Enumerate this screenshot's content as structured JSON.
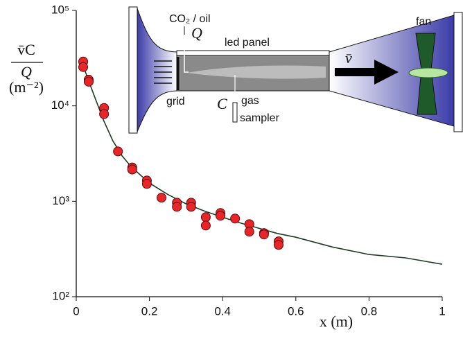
{
  "chart_data": {
    "type": "scatter",
    "ylabel_numerator": "v̄C",
    "ylabel_denominator": "Q",
    "ylabel_units": "(m⁻²)",
    "xlabel": "x (m)",
    "xlim": [
      0,
      1
    ],
    "xticks": [
      0,
      0.2,
      0.4,
      0.6,
      0.8,
      1
    ],
    "ylim": [
      100,
      100000
    ],
    "yticks": [
      {
        "value": 100,
        "label": "10²"
      },
      {
        "value": 1000,
        "label": "10³"
      },
      {
        "value": 10000,
        "label": "10⁴"
      },
      {
        "value": 100000,
        "label": "10⁵"
      }
    ],
    "log_y": true,
    "grid": false,
    "series": [
      {
        "type": "scatter",
        "color": "#e8262a",
        "x": [
          0.019,
          0.019,
          0.034,
          0.034,
          0.076,
          0.076,
          0.114,
          0.153,
          0.153,
          0.193,
          0.193,
          0.233,
          0.275,
          0.275,
          0.314,
          0.314,
          0.354,
          0.354,
          0.394,
          0.394,
          0.434,
          0.473,
          0.473,
          0.513,
          0.513,
          0.553,
          0.553
        ],
        "values": [
          29100,
          25500,
          18800,
          17900,
          9500,
          8200,
          3330,
          2260,
          2150,
          1650,
          1520,
          1090,
          967,
          875,
          967,
          875,
          681,
          557,
          753,
          705,
          659,
          576,
          480,
          464,
          449,
          380,
          349
        ]
      },
      {
        "type": "line",
        "color": "#1d3b22",
        "x": [
          0.01,
          0.02,
          0.03,
          0.05,
          0.075,
          0.1,
          0.125,
          0.15,
          0.2,
          0.25,
          0.3,
          0.35,
          0.4,
          0.45,
          0.5,
          0.55,
          0.6,
          0.7,
          0.8,
          0.9,
          1.0
        ],
        "values": [
          30000,
          26000,
          20000,
          12500,
          7000,
          4300,
          3000,
          2300,
          1550,
          1180,
          940,
          790,
          680,
          590,
          520,
          460,
          420,
          332,
          277,
          255,
          219
        ]
      }
    ]
  },
  "diagram": {
    "co2_label": "CO₂ / oil",
    "q_label": "Q",
    "panel_label": "led panel",
    "velocity_label": "v̄",
    "fan_label": "fan",
    "grid_label": "grid",
    "c_label": "C",
    "gas_label": "gas",
    "sampler_label": "sampler"
  }
}
